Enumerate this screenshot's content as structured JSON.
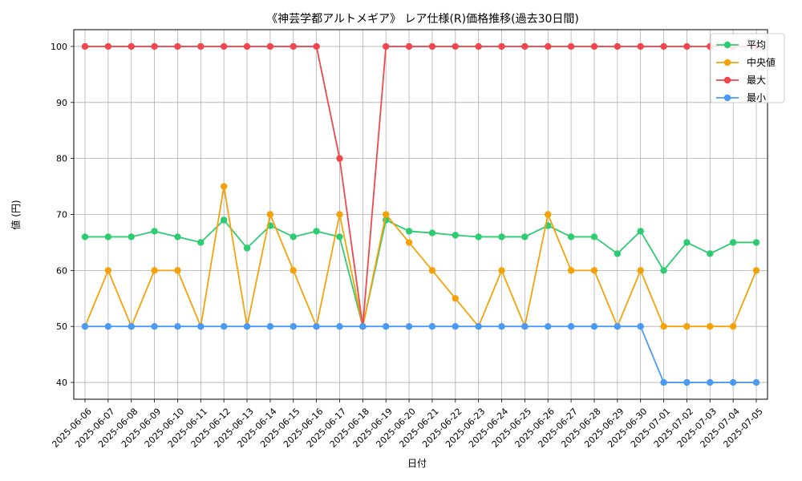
{
  "chart_data": {
    "type": "line",
    "title": "《神芸学都アルトメギア》 レア仕様(R)価格推移(過去30日間)",
    "xlabel": "日付",
    "ylabel": "値 (円)",
    "ylim": [
      37,
      103
    ],
    "yticks": [
      40,
      50,
      60,
      70,
      80,
      90,
      100
    ],
    "grid": true,
    "legend_position": "top-right",
    "categories": [
      "2025-06-06",
      "2025-06-07",
      "2025-06-08",
      "2025-06-09",
      "2025-06-10",
      "2025-06-11",
      "2025-06-12",
      "2025-06-13",
      "2025-06-14",
      "2025-06-15",
      "2025-06-16",
      "2025-06-17",
      "2025-06-18",
      "2025-06-19",
      "2025-06-20",
      "2025-06-21",
      "2025-06-22",
      "2025-06-23",
      "2025-06-24",
      "2025-06-25",
      "2025-06-26",
      "2025-06-27",
      "2025-06-28",
      "2025-06-29",
      "2025-06-30",
      "2025-07-01",
      "2025-07-02",
      "2025-07-03",
      "2025-07-04",
      "2025-07-05"
    ],
    "series": [
      {
        "name": "平均",
        "color": "#2ecc71",
        "values": [
          66,
          66,
          66,
          67,
          66,
          65,
          69,
          64,
          68,
          66,
          67,
          66,
          50,
          69,
          67,
          66.7,
          66.3,
          66,
          66,
          66,
          68,
          66,
          66,
          63,
          67,
          60,
          65,
          63,
          65,
          65
        ]
      },
      {
        "name": "中央値",
        "color": "#f5a20a",
        "values": [
          50,
          60,
          50,
          60,
          60,
          50,
          75,
          50,
          70,
          60,
          50,
          70,
          50,
          70,
          65,
          60,
          55,
          50,
          60,
          50,
          70,
          60,
          60,
          50,
          60,
          50,
          50,
          50,
          50,
          60
        ]
      },
      {
        "name": "最大",
        "color": "#f0474f",
        "values": [
          100,
          100,
          100,
          100,
          100,
          100,
          100,
          100,
          100,
          100,
          100,
          80,
          50,
          100,
          100,
          100,
          100,
          100,
          100,
          100,
          100,
          100,
          100,
          100,
          100,
          100,
          100,
          100,
          100,
          100
        ]
      },
      {
        "name": "最小",
        "color": "#4a9af5",
        "values": [
          50,
          50,
          50,
          50,
          50,
          50,
          50,
          50,
          50,
          50,
          50,
          50,
          50,
          50,
          50,
          50,
          50,
          50,
          50,
          50,
          50,
          50,
          50,
          50,
          50,
          40,
          40,
          40,
          40,
          40
        ]
      }
    ]
  }
}
